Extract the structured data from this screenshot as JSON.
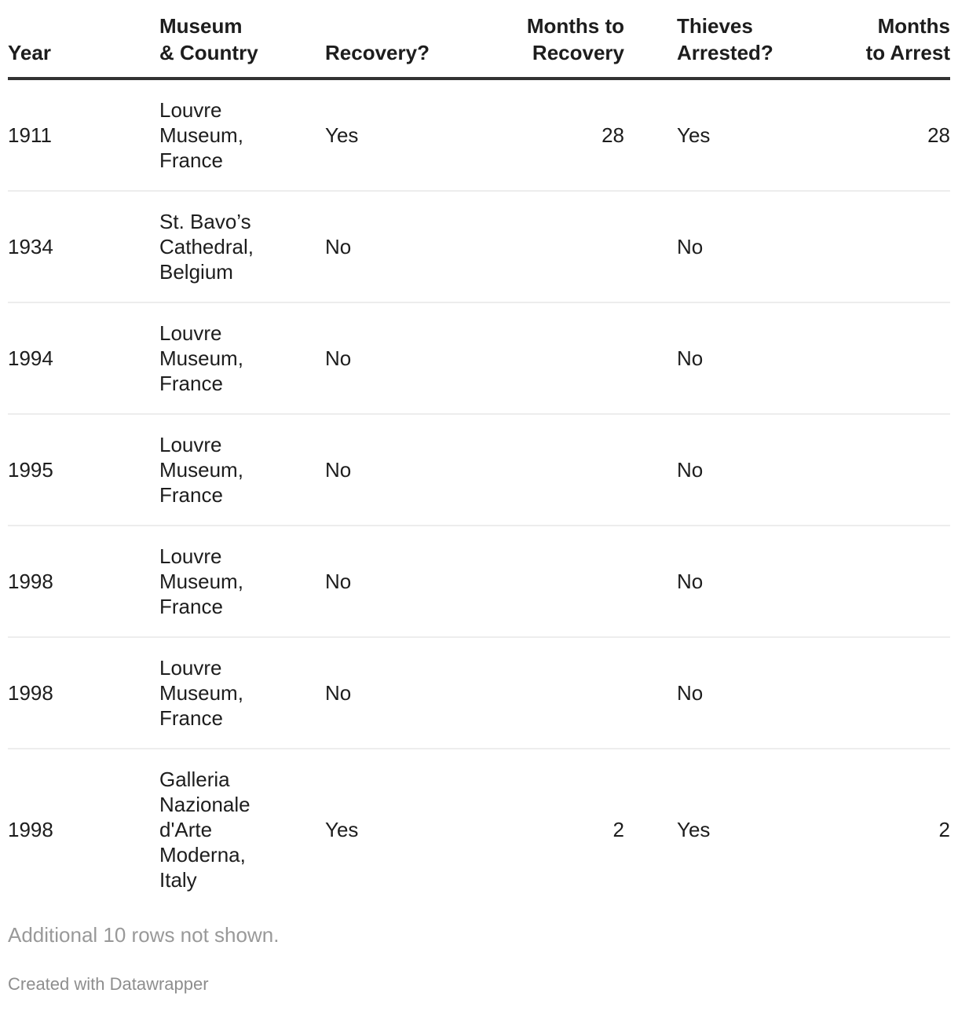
{
  "chart_data": {
    "type": "table",
    "columns": [
      {
        "key": "year",
        "label": "Year",
        "align": "left"
      },
      {
        "key": "museum-country",
        "label": "Museum\n& Country",
        "align": "left"
      },
      {
        "key": "recovery",
        "label": "Recovery?",
        "align": "left"
      },
      {
        "key": "months-to-recovery",
        "label": "Months to\nRecovery",
        "align": "right"
      },
      {
        "key": "thieves-arrested",
        "label": "Thieves\nArrested?",
        "align": "left"
      },
      {
        "key": "months-to-arrest",
        "label": "Months\nto Arrest",
        "align": "right"
      }
    ],
    "rows": [
      [
        "1911",
        "Louvre\nMuseum,\nFrance",
        "Yes",
        "28",
        "Yes",
        "28"
      ],
      [
        "1934",
        "St. Bavo’s\nCathedral,\nBelgium",
        "No",
        "",
        "No",
        ""
      ],
      [
        "1994",
        "Louvre\nMuseum,\nFrance",
        "No",
        "",
        "No",
        ""
      ],
      [
        "1995",
        "Louvre\nMuseum,\nFrance",
        "No",
        "",
        "No",
        ""
      ],
      [
        "1998",
        "Louvre\nMuseum,\nFrance",
        "No",
        "",
        "No",
        ""
      ],
      [
        "1998",
        "Louvre\nMuseum,\nFrance",
        "No",
        "",
        "No",
        ""
      ],
      [
        "1998",
        "Galleria\nNazionale\nd'Arte\nModerna,\nItaly",
        "Yes",
        "2",
        "Yes",
        "2"
      ]
    ],
    "note": "Additional 10 rows not shown.",
    "attribution": "Created with Datawrapper"
  },
  "colors": {
    "text": "#1d1d1d",
    "header_rule": "#333333",
    "row_divider": "#ededed",
    "note": "#999999",
    "attribution": "#8e8e8e"
  }
}
